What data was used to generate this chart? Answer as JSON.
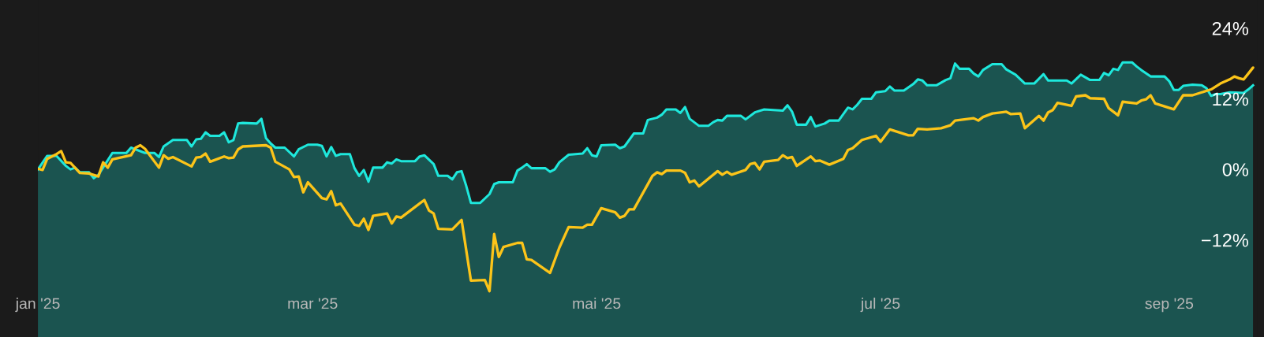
{
  "chart_data": {
    "type": "area",
    "xlim": [
      "2025-01-01",
      "2025-09-20"
    ],
    "xticks": [
      {
        "value": "2025-01-01",
        "label": "jan '25"
      },
      {
        "value": "2025-03-01",
        "label": "mar '25"
      },
      {
        "value": "2025-05-01",
        "label": "mai '25"
      },
      {
        "value": "2025-07-01",
        "label": "jul '25"
      },
      {
        "value": "2025-09-01",
        "label": "sep '25"
      }
    ],
    "ylim": [
      -28.5,
      28.8
    ],
    "yticks": [
      {
        "value": -12,
        "label": "−12%"
      },
      {
        "value": 0,
        "label": "0%"
      },
      {
        "value": 12,
        "label": "12%"
      },
      {
        "value": 24,
        "label": "24%"
      }
    ],
    "grid": false,
    "legend": false,
    "series": [
      {
        "color": "#1ee8dc",
        "x": [
          "2025-01-01",
          "2025-01-03",
          "2025-01-05",
          "2025-01-07",
          "2025-01-08",
          "2025-01-09",
          "2025-01-10",
          "2025-01-12",
          "2025-01-13",
          "2025-01-14",
          "2025-01-17",
          "2025-01-20",
          "2025-01-21",
          "2025-01-24",
          "2025-01-26",
          "2025-01-27",
          "2025-01-28",
          "2025-01-30",
          "2025-02-02",
          "2025-02-03",
          "2025-02-04",
          "2025-02-05",
          "2025-02-06",
          "2025-02-07",
          "2025-02-09",
          "2025-02-10",
          "2025-02-11",
          "2025-02-12",
          "2025-02-13",
          "2025-02-14",
          "2025-02-17",
          "2025-02-18",
          "2025-02-19",
          "2025-02-20",
          "2025-02-21",
          "2025-02-23",
          "2025-02-25",
          "2025-02-26",
          "2025-02-28",
          "2025-03-02",
          "2025-03-03",
          "2025-03-04",
          "2025-03-05",
          "2025-03-06",
          "2025-03-07",
          "2025-03-09",
          "2025-03-10",
          "2025-03-11",
          "2025-03-12",
          "2025-03-13",
          "2025-03-14",
          "2025-03-16",
          "2025-03-17",
          "2025-03-18",
          "2025-03-19",
          "2025-03-20",
          "2025-03-23",
          "2025-03-24",
          "2025-03-25",
          "2025-03-27",
          "2025-03-28",
          "2025-03-30",
          "2025-03-31",
          "2025-04-01",
          "2025-04-02",
          "2025-04-03",
          "2025-04-04",
          "2025-04-06",
          "2025-04-08",
          "2025-04-09",
          "2025-04-10",
          "2025-04-13",
          "2025-04-14",
          "2025-04-15",
          "2025-04-16",
          "2025-04-17",
          "2025-04-20",
          "2025-04-21",
          "2025-04-22",
          "2025-04-23",
          "2025-04-25",
          "2025-04-28",
          "2025-04-29",
          "2025-04-30",
          "2025-05-01",
          "2025-05-02",
          "2025-05-05",
          "2025-05-06",
          "2025-05-07",
          "2025-05-09",
          "2025-05-11",
          "2025-05-12",
          "2025-05-14",
          "2025-05-15",
          "2025-05-16",
          "2025-05-18",
          "2025-05-19",
          "2025-05-20",
          "2025-05-21",
          "2025-05-23",
          "2025-05-25",
          "2025-05-26",
          "2025-05-27",
          "2025-05-28",
          "2025-05-29",
          "2025-06-01",
          "2025-06-02",
          "2025-06-04",
          "2025-06-06",
          "2025-06-10",
          "2025-06-11",
          "2025-06-12",
          "2025-06-13",
          "2025-06-15",
          "2025-06-16",
          "2025-06-17",
          "2025-06-19",
          "2025-06-20",
          "2025-06-22",
          "2025-06-24",
          "2025-06-25",
          "2025-06-26",
          "2025-06-27",
          "2025-06-29",
          "2025-06-30",
          "2025-07-02",
          "2025-07-03",
          "2025-07-04",
          "2025-07-06",
          "2025-07-08",
          "2025-07-09",
          "2025-07-10",
          "2025-07-11",
          "2025-07-13",
          "2025-07-15",
          "2025-07-16",
          "2025-07-17",
          "2025-07-18",
          "2025-07-20",
          "2025-07-21",
          "2025-07-22",
          "2025-07-23",
          "2025-07-25",
          "2025-07-27",
          "2025-07-28",
          "2025-07-30",
          "2025-08-01",
          "2025-08-03",
          "2025-08-05",
          "2025-08-06",
          "2025-08-10",
          "2025-08-11",
          "2025-08-13",
          "2025-08-15",
          "2025-08-17",
          "2025-08-18",
          "2025-08-19",
          "2025-08-20",
          "2025-08-21",
          "2025-08-22",
          "2025-08-24",
          "2025-08-25",
          "2025-08-26",
          "2025-08-28",
          "2025-08-31",
          "2025-09-01",
          "2025-09-02",
          "2025-09-03",
          "2025-09-04",
          "2025-09-06",
          "2025-09-08",
          "2025-09-09",
          "2025-09-10",
          "2025-09-11",
          "2025-09-12",
          "2025-09-14",
          "2025-09-17",
          "2025-09-18",
          "2025-09-19"
        ],
        "values": [
          0,
          2.3,
          2.3,
          0.6,
          0,
          0.3,
          -0.5,
          -0.5,
          -1.5,
          -0.9,
          2.8,
          2.8,
          3.7,
          2.8,
          2.8,
          2.1,
          3.9,
          5.0,
          5.0,
          3.9,
          5.1,
          5.2,
          6.3,
          5.7,
          5.7,
          6.3,
          4.6,
          5.0,
          7.8,
          7.9,
          7.8,
          8.6,
          5.3,
          4.4,
          3.7,
          3.7,
          2.2,
          3.4,
          4.2,
          4.2,
          4.0,
          2.2,
          3.8,
          2.3,
          2.6,
          2.6,
          0.2,
          -1.1,
          -0.1,
          -2.1,
          0.3,
          0.3,
          1.2,
          1.0,
          1.7,
          1.4,
          1.4,
          2.2,
          2.4,
          0.9,
          -1.1,
          -1.1,
          -1.7,
          -0.5,
          -0.3,
          -2.8,
          -5.7,
          -5.7,
          -4.2,
          -2.5,
          -2.2,
          -2.2,
          -0.2,
          0.3,
          0.9,
          0.2,
          0.2,
          -0.4,
          0,
          1.2,
          2.5,
          2.7,
          3.6,
          2.4,
          2.2,
          4.1,
          4.2,
          3.6,
          3.9,
          6.1,
          6.1,
          8.4,
          8.8,
          9.3,
          10.2,
          10.2,
          9.6,
          10.6,
          8.6,
          7.4,
          7.4,
          8.0,
          8.4,
          8.3,
          9.1,
          9.1,
          8.5,
          9.7,
          10.2,
          10.0,
          10.9,
          9.8,
          7.6,
          7.6,
          8.9,
          7.3,
          7.8,
          8.3,
          8.3,
          10.5,
          10.2,
          11.0,
          12.0,
          12.0,
          13.1,
          13.3,
          14.1,
          13.4,
          13.4,
          14.5,
          15.3,
          15.1,
          14.3,
          14.3,
          15.2,
          15.5,
          18.0,
          17.1,
          17.1,
          16.3,
          15.8,
          16.9,
          17.9,
          17.9,
          17.0,
          16.1,
          14.6,
          14.6,
          16.2,
          15.1,
          15.1,
          14.6,
          16.1,
          15.2,
          15.2,
          16.4,
          16.0,
          17.1,
          16.9,
          18.2,
          18.2,
          17.5,
          16.9,
          15.8,
          15.8,
          15.0,
          13.5,
          13.5,
          14.2,
          14.4,
          14.3,
          13.8,
          12.5,
          12.8,
          12.8,
          13.1,
          13.0,
          13.6,
          14.3
        ]
      },
      {
        "type": "line",
        "color": "#fcc419",
        "x": [
          "2025-01-01",
          "2025-01-02",
          "2025-01-03",
          "2025-01-05",
          "2025-01-06",
          "2025-01-07",
          "2025-01-08",
          "2025-01-10",
          "2025-01-12",
          "2025-01-14",
          "2025-01-15",
          "2025-01-16",
          "2025-01-17",
          "2025-01-21",
          "2025-01-22",
          "2025-01-23",
          "2025-01-24",
          "2025-01-27",
          "2025-01-28",
          "2025-01-29",
          "2025-01-30",
          "2025-02-03",
          "2025-02-04",
          "2025-02-05",
          "2025-02-06",
          "2025-02-07",
          "2025-02-10",
          "2025-02-11",
          "2025-02-12",
          "2025-02-13",
          "2025-02-14",
          "2025-02-19",
          "2025-02-20",
          "2025-02-21",
          "2025-02-24",
          "2025-02-25",
          "2025-02-26",
          "2025-02-27",
          "2025-02-28",
          "2025-03-03",
          "2025-03-04",
          "2025-03-05",
          "2025-03-06",
          "2025-03-07",
          "2025-03-10",
          "2025-03-11",
          "2025-03-12",
          "2025-03-13",
          "2025-03-14",
          "2025-03-17",
          "2025-03-18",
          "2025-03-19",
          "2025-03-20",
          "2025-03-21",
          "2025-03-25",
          "2025-03-26",
          "2025-03-27",
          "2025-03-28",
          "2025-03-31",
          "2025-04-02",
          "2025-04-04",
          "2025-04-07",
          "2025-04-08",
          "2025-04-09",
          "2025-04-10",
          "2025-04-11",
          "2025-04-14",
          "2025-04-15",
          "2025-04-16",
          "2025-04-17",
          "2025-04-21",
          "2025-04-23",
          "2025-04-25",
          "2025-04-28",
          "2025-04-29",
          "2025-04-30",
          "2025-05-02",
          "2025-05-05",
          "2025-05-06",
          "2025-05-07",
          "2025-05-08",
          "2025-05-09",
          "2025-05-13",
          "2025-05-14",
          "2025-05-15",
          "2025-05-16",
          "2025-05-19",
          "2025-05-20",
          "2025-05-21",
          "2025-05-22",
          "2025-05-23",
          "2025-05-27",
          "2025-05-28",
          "2025-05-29",
          "2025-05-30",
          "2025-06-02",
          "2025-06-03",
          "2025-06-04",
          "2025-06-05",
          "2025-06-06",
          "2025-06-09",
          "2025-06-10",
          "2025-06-11",
          "2025-06-12",
          "2025-06-13",
          "2025-06-16",
          "2025-06-17",
          "2025-06-18",
          "2025-06-20",
          "2025-06-23",
          "2025-06-24",
          "2025-06-25",
          "2025-06-27",
          "2025-06-30",
          "2025-07-01",
          "2025-07-03",
          "2025-07-07",
          "2025-07-08",
          "2025-07-09",
          "2025-07-11",
          "2025-07-14",
          "2025-07-16",
          "2025-07-17",
          "2025-07-21",
          "2025-07-22",
          "2025-07-23",
          "2025-07-25",
          "2025-07-28",
          "2025-07-29",
          "2025-07-31",
          "2025-08-01",
          "2025-08-04",
          "2025-08-05",
          "2025-08-06",
          "2025-08-07",
          "2025-08-08",
          "2025-08-11",
          "2025-08-12",
          "2025-08-14",
          "2025-08-15",
          "2025-08-18",
          "2025-08-19",
          "2025-08-20",
          "2025-08-21",
          "2025-08-22",
          "2025-08-25",
          "2025-08-26",
          "2025-08-27",
          "2025-08-28",
          "2025-08-29",
          "2025-09-02",
          "2025-09-04",
          "2025-09-06",
          "2025-09-08",
          "2025-09-10",
          "2025-09-12",
          "2025-09-14",
          "2025-09-15",
          "2025-09-16",
          "2025-09-17",
          "2025-09-18",
          "2025-09-19"
        ],
        "values": [
          0.1,
          -0.1,
          1.8,
          2.6,
          3.1,
          1.2,
          1.1,
          -0.6,
          -0.7,
          -1.2,
          1.2,
          0.3,
          1.7,
          2.4,
          3.7,
          4.1,
          3.5,
          0.3,
          2.4,
          1.8,
          2.1,
          0.5,
          2.0,
          2.1,
          2.7,
          1.3,
          2.2,
          1.9,
          2.0,
          3.4,
          3.9,
          4.1,
          3.7,
          1.3,
          0,
          -1.3,
          -1.2,
          -3.9,
          -2.2,
          -4.9,
          -5.1,
          -3.7,
          -6.1,
          -5.8,
          -9.4,
          -9.6,
          -8.4,
          -10.3,
          -7.9,
          -7.5,
          -9.2,
          -8.0,
          -8.2,
          -7.6,
          -5.2,
          -7.0,
          -7.5,
          -10.1,
          -10.2,
          -8.6,
          -18.9,
          -18.8,
          -20.7,
          -11.0,
          -14.9,
          -13.2,
          -12.5,
          -12.5,
          -15.3,
          -15.4,
          -17.6,
          -13.3,
          -9.8,
          -9.9,
          -9.4,
          -9.4,
          -6.6,
          -7.3,
          -8.2,
          -7.9,
          -6.8,
          -6.8,
          -1.1,
          -0.5,
          -0.8,
          -0.2,
          -0.2,
          -0.6,
          -2.2,
          -1.9,
          -2.9,
          -0.3,
          -0.9,
          -0.4,
          -0.9,
          -0.1,
          0.9,
          1.1,
          0,
          1.3,
          1.6,
          2.4,
          1.9,
          2.1,
          0.6,
          2.2,
          1.4,
          1.5,
          0.8,
          1.8,
          3.3,
          3.6,
          5.0,
          5.7,
          4.7,
          6.8,
          5.8,
          5.8,
          6.9,
          6.8,
          7.0,
          7.5,
          8.3,
          8.7,
          8.3,
          8.9,
          9.5,
          9.8,
          9.4,
          9.5,
          7.0,
          9.1,
          8.3,
          9.7,
          10.1,
          11.3,
          10.8,
          12.4,
          12.6,
          12.1,
          12.0,
          10.4,
          9.8,
          9.2,
          11.5,
          11.2,
          11.7,
          11.9,
          12.6,
          11.2,
          10.2,
          12.6,
          12.6,
          13.1,
          13.6,
          14.6,
          15.3,
          15.8,
          15.5,
          15.3,
          16.3,
          17.3
        ]
      }
    ]
  }
}
